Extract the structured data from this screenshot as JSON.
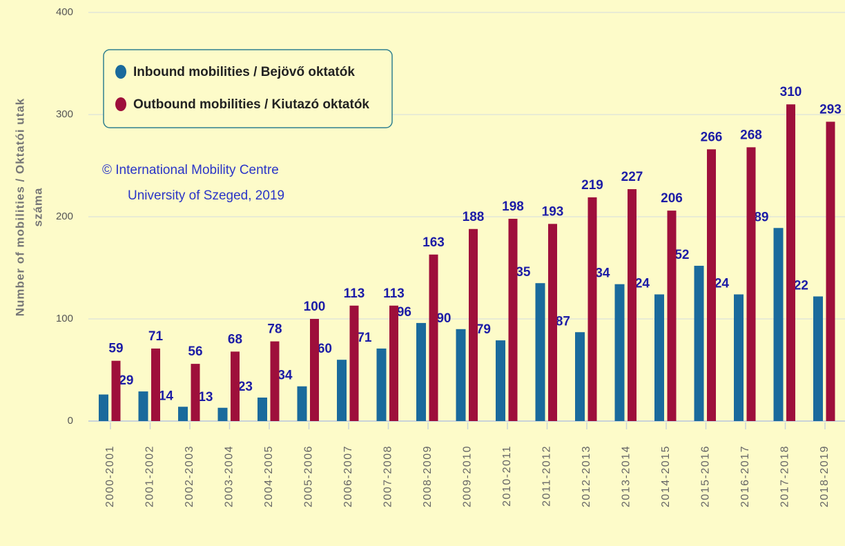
{
  "chart_data": {
    "type": "bar",
    "y_axis_label": [
      "Number of mobilities / Oktatói utak",
      "száma"
    ],
    "annotations": [
      "© International Mobility Centre",
      "University of Szeged, 2019"
    ],
    "categories": [
      "2000-2001",
      "2001-2002",
      "2002-2003",
      "2003-2004",
      "2004-2005",
      "2005-2006",
      "2006-2007",
      "2007-2008",
      "2008-2009",
      "2009-2010",
      "2010-2011",
      "2011-2012",
      "2012-2013",
      "2013-2014",
      "2014-2015",
      "2015-2016",
      "2016-2017",
      "2017-2018",
      "2018-2019"
    ],
    "series": [
      {
        "name": "Inbound mobilities / Bejövő oktatók",
        "color": "#1a6a9c",
        "values": [
          26,
          29,
          14,
          13,
          23,
          34,
          60,
          71,
          96,
          90,
          79,
          135,
          87,
          134,
          124,
          152,
          124,
          189,
          122
        ],
        "value_labels": [
          null,
          "29",
          "14",
          "13",
          "23",
          "34",
          "60",
          "71",
          "96",
          "90",
          "79",
          "135",
          "87",
          "134",
          "124",
          "152",
          "124",
          "189",
          "122"
        ]
      },
      {
        "name": "Outbound mobilities / Kiutazó oktatók",
        "color": "#9e0f3b",
        "values": [
          59,
          71,
          56,
          68,
          78,
          100,
          113,
          113,
          163,
          188,
          198,
          193,
          219,
          227,
          206,
          266,
          268,
          310,
          293
        ]
      }
    ],
    "ylim": [
      0,
      400
    ],
    "yticks": [
      0,
      100,
      200,
      300,
      400
    ],
    "grid": true,
    "legend": "upper left"
  }
}
